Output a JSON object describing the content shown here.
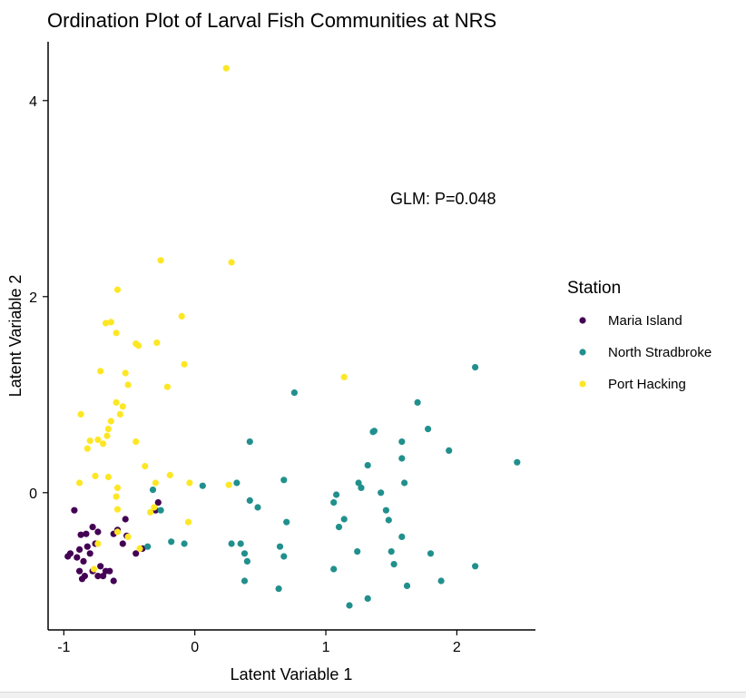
{
  "chart_data": {
    "type": "scatter",
    "title": "Ordination Plot of Larval Fish Communities at NRS",
    "xlabel": "Latent Variable 1",
    "ylabel": "Latent Variable 2",
    "xlim": [
      -1.12,
      2.6
    ],
    "ylim": [
      -1.4,
      4.6
    ],
    "xticks": [
      -1,
      0,
      1,
      2
    ],
    "yticks": [
      0,
      2,
      4
    ],
    "grid": false,
    "legend_position": "right",
    "legend_title": "Station",
    "annotation": "GLM: P=0.048",
    "series": [
      {
        "name": "Maria Island",
        "color": "#440154",
        "points": [
          [
            -0.92,
            -0.18
          ],
          [
            -0.87,
            -0.43
          ],
          [
            -0.82,
            -0.55
          ],
          [
            -0.78,
            -0.35
          ],
          [
            -0.74,
            -0.4
          ],
          [
            -0.88,
            -0.58
          ],
          [
            -0.95,
            -0.62
          ],
          [
            -0.97,
            -0.65
          ],
          [
            -0.9,
            -0.66
          ],
          [
            -0.85,
            -0.7
          ],
          [
            -0.8,
            -0.62
          ],
          [
            -0.76,
            -0.52
          ],
          [
            -0.72,
            -0.75
          ],
          [
            -0.7,
            -0.85
          ],
          [
            -0.84,
            -0.85
          ],
          [
            -0.86,
            -0.88
          ],
          [
            -0.78,
            -0.8
          ],
          [
            -0.62,
            -0.42
          ],
          [
            -0.59,
            -0.38
          ],
          [
            -0.55,
            -0.52
          ],
          [
            -0.52,
            -0.44
          ],
          [
            -0.53,
            -0.27
          ],
          [
            -0.45,
            -0.62
          ],
          [
            -0.4,
            -0.57
          ],
          [
            -0.62,
            -0.9
          ],
          [
            -0.65,
            -0.8
          ],
          [
            -0.28,
            -0.1
          ],
          [
            -0.3,
            -0.18
          ],
          [
            -0.68,
            -0.8
          ],
          [
            -0.74,
            -0.85
          ],
          [
            -0.83,
            -0.42
          ],
          [
            -0.88,
            -0.8
          ]
        ]
      },
      {
        "name": "North Stradbroke",
        "color": "#21908d",
        "points": [
          [
            0.76,
            1.02
          ],
          [
            0.42,
            0.52
          ],
          [
            0.32,
            0.1
          ],
          [
            0.06,
            0.07
          ],
          [
            -0.32,
            0.03
          ],
          [
            -0.26,
            -0.18
          ],
          [
            -0.18,
            -0.5
          ],
          [
            -0.08,
            -0.52
          ],
          [
            -0.36,
            -0.55
          ],
          [
            0.28,
            -0.52
          ],
          [
            0.35,
            -0.52
          ],
          [
            0.38,
            -0.62
          ],
          [
            0.4,
            -0.7
          ],
          [
            0.38,
            -0.9
          ],
          [
            0.48,
            -0.15
          ],
          [
            0.42,
            -0.08
          ],
          [
            0.68,
            0.13
          ],
          [
            0.65,
            -0.55
          ],
          [
            0.7,
            -0.3
          ],
          [
            0.68,
            -0.65
          ],
          [
            0.64,
            -0.98
          ],
          [
            1.08,
            -0.02
          ],
          [
            1.06,
            -0.1
          ],
          [
            1.14,
            -0.27
          ],
          [
            1.1,
            -0.35
          ],
          [
            1.06,
            -0.78
          ],
          [
            1.18,
            -1.15
          ],
          [
            1.32,
            -1.08
          ],
          [
            1.24,
            -0.6
          ],
          [
            1.25,
            0.1
          ],
          [
            1.27,
            0.05
          ],
          [
            1.32,
            0.28
          ],
          [
            1.36,
            0.62
          ],
          [
            1.37,
            0.63
          ],
          [
            1.42,
            0.0
          ],
          [
            1.46,
            -0.18
          ],
          [
            1.48,
            -0.28
          ],
          [
            1.5,
            -0.6
          ],
          [
            1.52,
            -0.73
          ],
          [
            1.58,
            0.52
          ],
          [
            1.58,
            0.35
          ],
          [
            1.6,
            0.1
          ],
          [
            1.58,
            -0.45
          ],
          [
            1.62,
            -0.95
          ],
          [
            1.7,
            0.92
          ],
          [
            1.78,
            0.65
          ],
          [
            1.8,
            -0.62
          ],
          [
            1.88,
            -0.9
          ],
          [
            1.94,
            0.43
          ],
          [
            2.14,
            1.28
          ],
          [
            2.14,
            -0.75
          ],
          [
            2.46,
            0.31
          ]
        ]
      },
      {
        "name": "Port Hacking",
        "color": "#fde725",
        "points": [
          [
            0.24,
            4.33
          ],
          [
            0.28,
            2.35
          ],
          [
            -0.26,
            2.37
          ],
          [
            -0.59,
            2.07
          ],
          [
            -0.64,
            1.74
          ],
          [
            -0.6,
            1.63
          ],
          [
            -0.68,
            1.73
          ],
          [
            -0.1,
            1.8
          ],
          [
            -0.43,
            1.5
          ],
          [
            -0.45,
            1.52
          ],
          [
            -0.29,
            1.53
          ],
          [
            -0.08,
            1.31
          ],
          [
            -0.72,
            1.24
          ],
          [
            -0.53,
            1.22
          ],
          [
            -0.51,
            1.1
          ],
          [
            -0.21,
            1.08
          ],
          [
            1.14,
            1.18
          ],
          [
            -0.6,
            0.92
          ],
          [
            -0.55,
            0.88
          ],
          [
            -0.57,
            0.8
          ],
          [
            -0.64,
            0.73
          ],
          [
            -0.66,
            0.65
          ],
          [
            -0.67,
            0.58
          ],
          [
            -0.74,
            0.54
          ],
          [
            -0.8,
            0.53
          ],
          [
            -0.87,
            0.8
          ],
          [
            -0.7,
            0.5
          ],
          [
            -0.82,
            0.45
          ],
          [
            -0.45,
            0.52
          ],
          [
            -0.38,
            0.27
          ],
          [
            -0.59,
            0.05
          ],
          [
            -0.76,
            0.17
          ],
          [
            -0.66,
            0.16
          ],
          [
            -0.88,
            0.1
          ],
          [
            -0.6,
            -0.04
          ],
          [
            -0.59,
            -0.17
          ],
          [
            -0.19,
            0.18
          ],
          [
            -0.04,
            0.1
          ],
          [
            0.26,
            0.08
          ],
          [
            -0.3,
            0.1
          ],
          [
            -0.34,
            -0.2
          ],
          [
            -0.42,
            -0.57
          ],
          [
            -0.51,
            -0.45
          ],
          [
            -0.59,
            -0.4
          ],
          [
            -0.74,
            -0.52
          ],
          [
            -0.77,
            -0.78
          ],
          [
            -0.05,
            -0.3
          ],
          [
            -0.31,
            -0.15
          ]
        ]
      }
    ]
  }
}
